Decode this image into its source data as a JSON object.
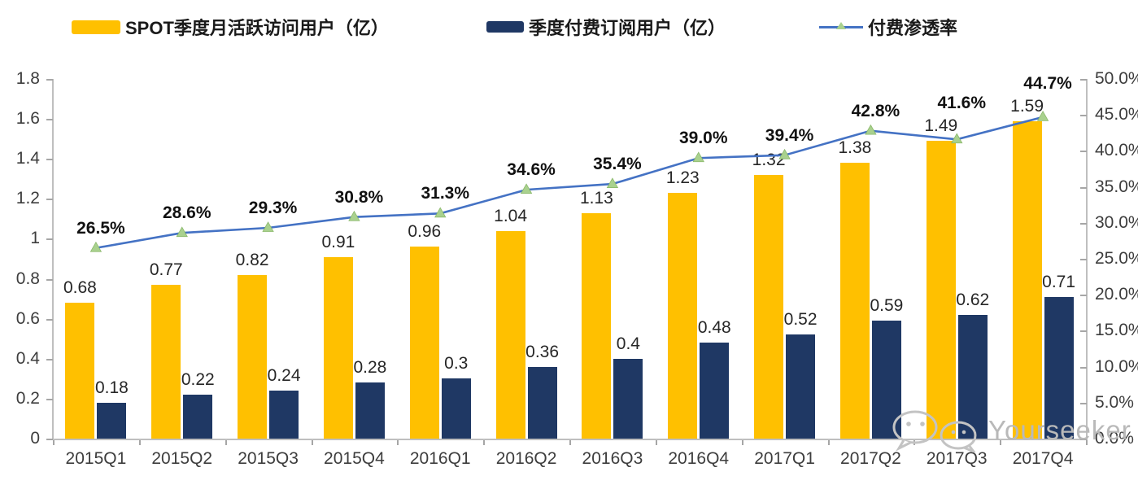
{
  "legend": {
    "items": [
      {
        "label": "SPOT季度月活跃访问用户（亿）",
        "color": "#FFC000",
        "type": "bar"
      },
      {
        "label": "季度付费订阅用户（亿）",
        "color": "#1F3864",
        "type": "bar"
      },
      {
        "label": "付费渗透率",
        "color": "#4472C4",
        "marker_color": "#A9D18E",
        "type": "line"
      }
    ]
  },
  "chart_data": {
    "type": "bar",
    "subtype": "grouped-bars-with-secondary-axis-line",
    "categories": [
      "2015Q1",
      "2015Q2",
      "2015Q3",
      "2015Q4",
      "2016Q1",
      "2016Q2",
      "2016Q3",
      "2016Q4",
      "2017Q1",
      "2017Q2",
      "2017Q3",
      "2017Q4"
    ],
    "series": [
      {
        "name": "SPOT季度月活跃访问用户（亿）",
        "type": "bar",
        "axis": "left",
        "color": "#FFC000",
        "values": [
          0.68,
          0.77,
          0.82,
          0.91,
          0.96,
          1.04,
          1.13,
          1.23,
          1.32,
          1.38,
          1.49,
          1.59
        ],
        "labels": [
          "0.68",
          "0.77",
          "0.82",
          "0.91",
          "0.96",
          "1.04",
          "1.13",
          "1.23",
          "1.32",
          "1.38",
          "1.49",
          "1.59"
        ]
      },
      {
        "name": "季度付费订阅用户（亿）",
        "type": "bar",
        "axis": "left",
        "color": "#1F3864",
        "values": [
          0.18,
          0.22,
          0.24,
          0.28,
          0.3,
          0.36,
          0.4,
          0.48,
          0.52,
          0.59,
          0.62,
          0.71
        ],
        "labels": [
          "0.18",
          "0.22",
          "0.24",
          "0.28",
          "0.3",
          "0.36",
          "0.4",
          "0.48",
          "0.52",
          "0.59",
          "0.62",
          "0.71"
        ]
      },
      {
        "name": "付费渗透率",
        "type": "line",
        "axis": "right",
        "color": "#4472C4",
        "marker": "triangle",
        "marker_color": "#A9D18E",
        "values": [
          26.5,
          28.6,
          29.3,
          30.8,
          31.3,
          34.6,
          35.4,
          39.0,
          39.4,
          42.8,
          41.6,
          44.7
        ],
        "labels": [
          "26.5%",
          "28.6%",
          "29.3%",
          "30.8%",
          "31.3%",
          "34.6%",
          "35.4%",
          "39.0%",
          "39.4%",
          "42.8%",
          "41.6%",
          "44.7%"
        ]
      }
    ],
    "left_axis": {
      "min": 0,
      "max": 1.8,
      "step": 0.2,
      "tick_labels": [
        "1.8",
        "1.6",
        "1.4",
        "1.2",
        "1",
        "0.8",
        "0.6",
        "0.4",
        "0.2",
        "0"
      ]
    },
    "right_axis": {
      "min": 0,
      "max": 50,
      "step": 5,
      "unit": "%",
      "tick_labels": [
        "50.0%",
        "45.0%",
        "40.0%",
        "35.0%",
        "30.0%",
        "25.0%",
        "20.0%",
        "15.0%",
        "10.0%",
        "5.0%",
        "0.0%"
      ]
    },
    "grid": false,
    "legend_position": "top"
  },
  "watermark": {
    "text": "Yourseeker",
    "icon": "wechat-icon"
  },
  "colors": {
    "axis_line": "#BFBFBF",
    "tick": "#A6A6A6",
    "value_label": "#262626",
    "pct_label": "#111111",
    "axis_label": "#3D3D3D",
    "watermark": "#B9B9B9"
  }
}
